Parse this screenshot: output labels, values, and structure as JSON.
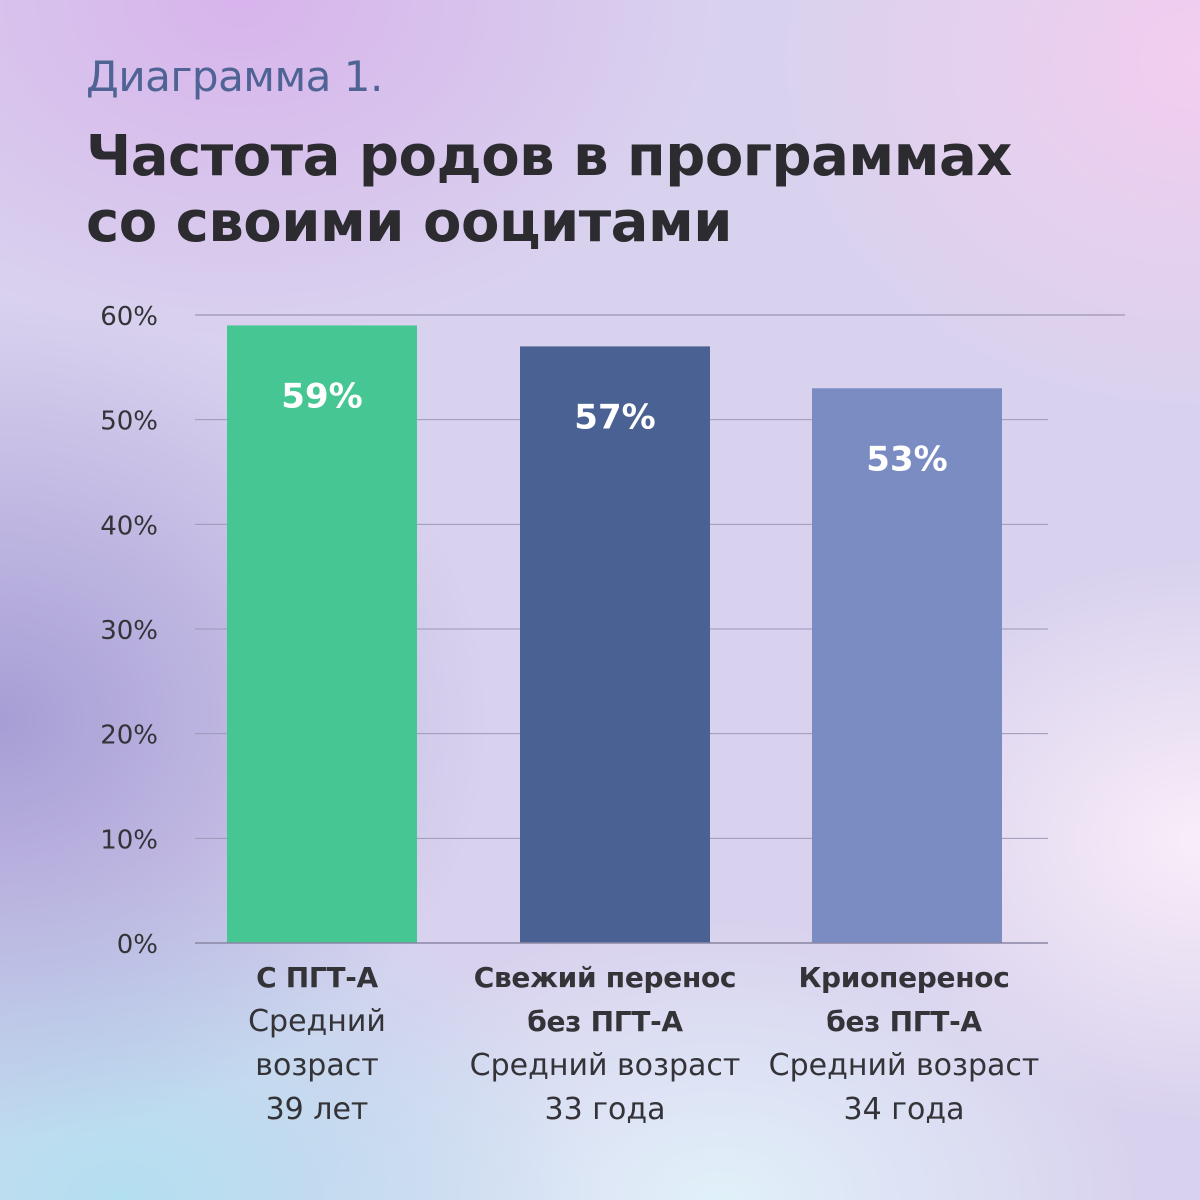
{
  "header": {
    "subtitle": "Диаграмма 1.",
    "title_line1": "Частота родов в программах",
    "title_line2": "со своими ооцитами"
  },
  "chart_data": {
    "type": "bar",
    "categories": [
      "С ПГТ-А",
      "Свежий перенос без ПГТ-А",
      "Криоперенос без ПГТ-А"
    ],
    "values": [
      59,
      57,
      53
    ],
    "value_labels": [
      "59%",
      "57%",
      "53%"
    ],
    "colors": [
      "#46c693",
      "#4a6193",
      "#7b8cc3"
    ],
    "ylim": [
      0,
      60
    ],
    "yticks": [
      "0%",
      "10%",
      "20%",
      "30%",
      "40%",
      "50%",
      "60%"
    ],
    "grid": true,
    "category_labels": [
      {
        "name_lines": [
          "С ПГТ-А"
        ],
        "age_lines": [
          "Средний",
          "возраст",
          "39 лет"
        ]
      },
      {
        "name_lines": [
          "Свежий перенос",
          "без ПГТ-А"
        ],
        "age_lines": [
          "Средний возраст",
          "33 года"
        ]
      },
      {
        "name_lines": [
          "Криоперенос",
          "без ПГТ-А"
        ],
        "age_lines": [
          "Средний возраст",
          "34 года"
        ]
      }
    ]
  }
}
